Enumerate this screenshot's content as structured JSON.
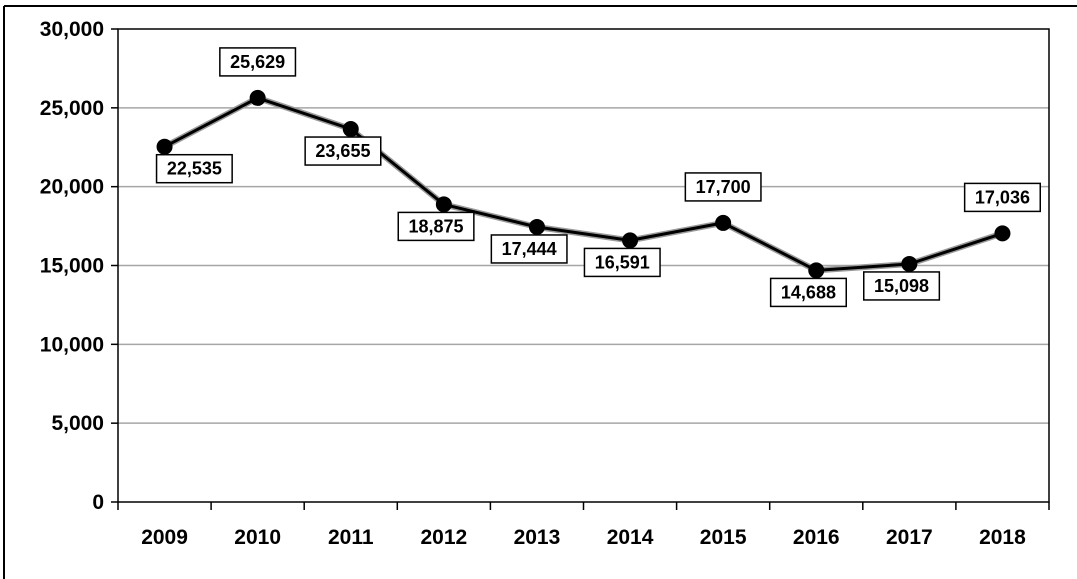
{
  "chart_data": {
    "type": "line",
    "title": "",
    "xlabel": "",
    "ylabel": "",
    "categories": [
      "2009",
      "2010",
      "2011",
      "2012",
      "2013",
      "2014",
      "2015",
      "2016",
      "2017",
      "2018"
    ],
    "series": [
      {
        "values": [
          22535,
          25629,
          23655,
          18875,
          17444,
          16591,
          17700,
          14688,
          15098,
          17036
        ],
        "data_labels": [
          "22,535",
          "25,629",
          "23,655",
          "18,875",
          "17,444",
          "16,591",
          "17,700",
          "14,688",
          "15,098",
          "17,036"
        ]
      }
    ],
    "ylim": [
      0,
      30000
    ],
    "y_ticks": [
      0,
      5000,
      10000,
      15000,
      20000,
      25000,
      30000
    ],
    "y_tick_labels": [
      "0",
      "5,000",
      "10,000",
      "15,000",
      "20,000",
      "25,000",
      "30,000"
    ],
    "grid": true,
    "legend": "none",
    "colors": {
      "line": "#000000",
      "marker": "#000000",
      "grid": "#a6a6a6",
      "plot_border": "#000000",
      "label_box_fill": "#ffffff"
    }
  }
}
